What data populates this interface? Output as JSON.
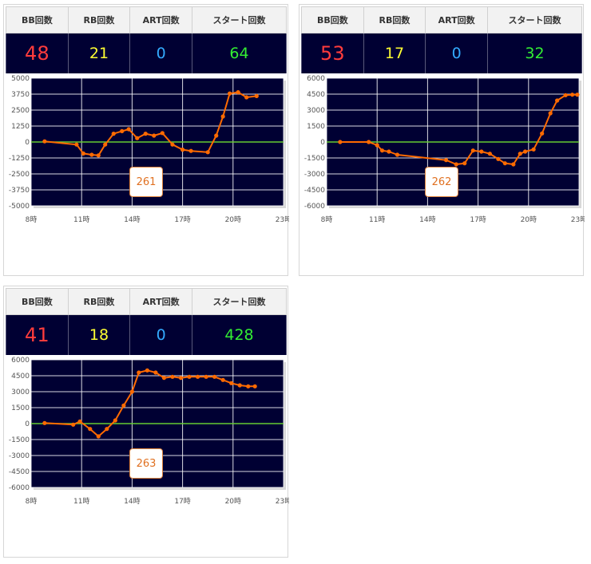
{
  "headers": {
    "bb": "BB回数",
    "rb": "RB回数",
    "art": "ART回数",
    "start": "スタート回数"
  },
  "colors": {
    "bb": "#ff3c3c",
    "rb": "#ffff33",
    "art": "#33aaff",
    "start": "#33ee33",
    "line": "#ff6a00",
    "zero": "#66cc33",
    "plot_bg": "#000033",
    "grid": "#ffffff"
  },
  "x_ticks": [
    "8時",
    "11時",
    "14時",
    "17時",
    "20時",
    "23時"
  ],
  "machines": [
    {
      "number": "261",
      "bb": "48",
      "rb": "21",
      "art": "0",
      "start": "64",
      "chart_data": {
        "type": "line",
        "xlim": [
          8,
          23
        ],
        "ylim": [
          -5000,
          5000
        ],
        "yticks": [
          "5000",
          "3750",
          "2500",
          "1250",
          "0",
          "-1250",
          "-2500",
          "-3750",
          "-5000"
        ],
        "x": [
          8.8,
          10.7,
          11.1,
          11.6,
          12.0,
          12.4,
          12.9,
          13.4,
          13.8,
          14.3,
          14.8,
          15.3,
          15.8,
          16.4,
          17.0,
          17.5,
          18.5,
          19.0,
          19.4,
          19.8,
          20.3,
          20.8,
          21.4
        ],
        "y": [
          50,
          -200,
          -900,
          -1000,
          -1050,
          -200,
          650,
          850,
          1000,
          300,
          650,
          500,
          700,
          -200,
          -600,
          -700,
          -800,
          500,
          2000,
          3800,
          3900,
          3500,
          3600
        ]
      }
    },
    {
      "number": "262",
      "bb": "53",
      "rb": "17",
      "art": "0",
      "start": "32",
      "chart_data": {
        "type": "line",
        "xlim": [
          8,
          23
        ],
        "ylim": [
          -6000,
          6000
        ],
        "yticks": [
          "6000",
          "4500",
          "3000",
          "1500",
          "0",
          "-1500",
          "-3000",
          "-4500",
          "-6000"
        ],
        "x": [
          8.8,
          10.5,
          11.0,
          11.3,
          11.7,
          12.2,
          15.1,
          15.7,
          16.2,
          16.7,
          17.2,
          17.7,
          18.2,
          18.6,
          19.1,
          19.5,
          19.8,
          20.3,
          20.8,
          21.3,
          21.7,
          22.2,
          22.6,
          22.9
        ],
        "y": [
          0,
          0,
          -300,
          -800,
          -900,
          -1200,
          -1700,
          -2100,
          -2000,
          -800,
          -900,
          -1100,
          -1600,
          -2000,
          -2100,
          -1100,
          -900,
          -700,
          800,
          2700,
          3900,
          4400,
          4450,
          4450
        ]
      }
    },
    {
      "number": "263",
      "bb": "41",
      "rb": "18",
      "art": "0",
      "start": "428",
      "chart_data": {
        "type": "line",
        "xlim": [
          8,
          23
        ],
        "ylim": [
          -6000,
          6000
        ],
        "yticks": [
          "6000",
          "4500",
          "3000",
          "1500",
          "0",
          "-1500",
          "-3000",
          "-4500",
          "-6000"
        ],
        "x": [
          8.8,
          10.5,
          10.9,
          11.5,
          12.0,
          12.5,
          13.0,
          13.5,
          14.0,
          14.4,
          14.9,
          15.4,
          15.9,
          16.4,
          16.9,
          17.4,
          17.9,
          18.4,
          18.9,
          19.4,
          19.9,
          20.4,
          20.9,
          21.3
        ],
        "y": [
          50,
          -100,
          200,
          -500,
          -1200,
          -500,
          300,
          1700,
          3000,
          4800,
          5000,
          4800,
          4300,
          4400,
          4300,
          4400,
          4400,
          4400,
          4400,
          4100,
          3800,
          3600,
          3500,
          3500
        ]
      }
    }
  ]
}
